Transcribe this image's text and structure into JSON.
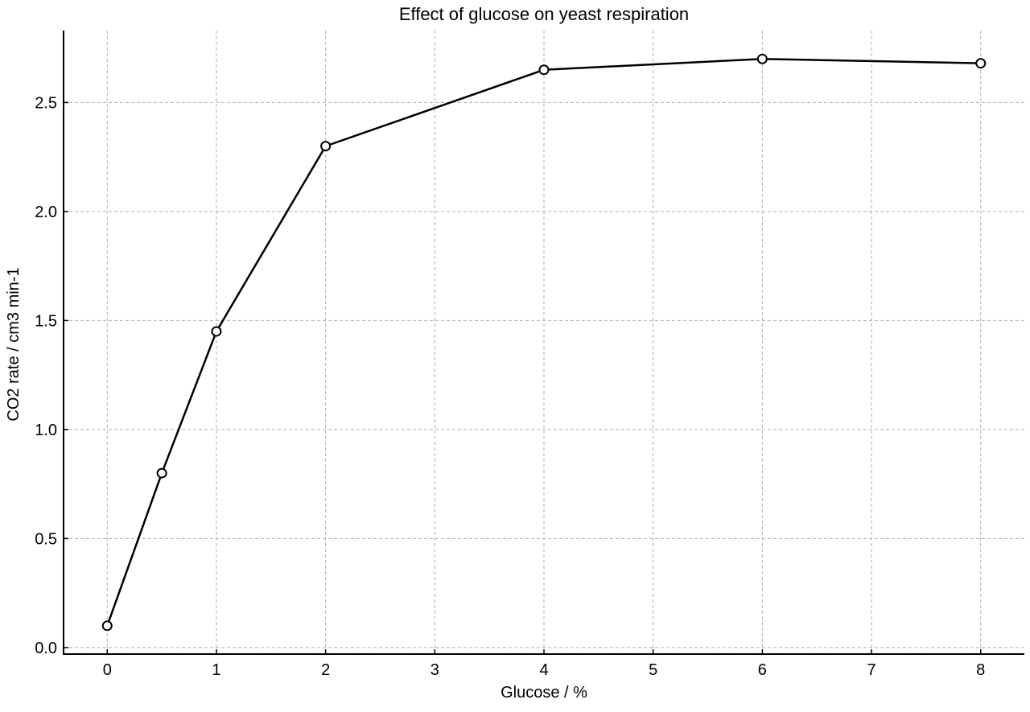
{
  "chart_data": {
    "type": "line",
    "title": "Effect of glucose on yeast respiration",
    "xlabel": "Glucose / %",
    "ylabel": "CO2 rate / cm3 min-1",
    "xlim": [
      -0.4,
      8.4
    ],
    "ylim": [
      -0.03,
      2.83
    ],
    "x_ticks": [
      0,
      1,
      2,
      3,
      4,
      5,
      6,
      7,
      8
    ],
    "x_tick_labels": [
      "0",
      "1",
      "2",
      "3",
      "4",
      "5",
      "6",
      "7",
      "8"
    ],
    "y_ticks": [
      0.0,
      0.5,
      1.0,
      1.5,
      2.0,
      2.5
    ],
    "y_tick_labels": [
      "0.0",
      "0.5",
      "1.0",
      "1.5",
      "2.0",
      "2.5"
    ],
    "grid": true,
    "series": [
      {
        "x": [
          0,
          0.5,
          1,
          2,
          4,
          6,
          8
        ],
        "y": [
          0.1,
          0.8,
          1.45,
          2.3,
          2.65,
          2.7,
          2.68
        ],
        "color": "#000000",
        "marker": "open-circle"
      }
    ]
  }
}
